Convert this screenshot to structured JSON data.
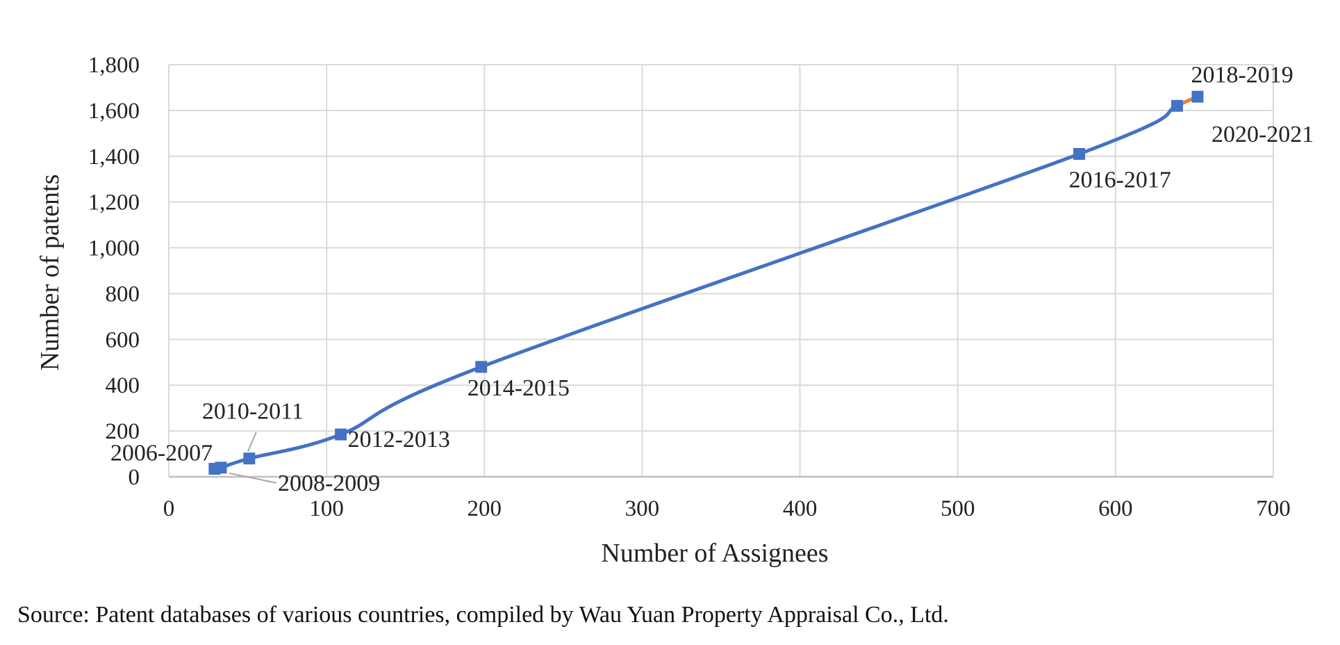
{
  "chart_data": {
    "type": "scatter",
    "xlabel": "Number of Assignees",
    "ylabel": "Number of patents",
    "xlim": [
      0,
      700
    ],
    "ylim": [
      0,
      1800
    ],
    "x_ticks": [
      0,
      100,
      200,
      300,
      400,
      500,
      600,
      700
    ],
    "y_ticks": [
      0,
      200,
      400,
      600,
      800,
      1000,
      1200,
      1400,
      1600,
      1800
    ],
    "x_tick_labels": [
      "0",
      "100",
      "200",
      "300",
      "400",
      "500",
      "600",
      "700"
    ],
    "y_tick_labels": [
      "0",
      "200",
      "400",
      "600",
      "800",
      "1,000",
      "1,200",
      "1,400",
      "1,600",
      "1,800"
    ],
    "grid": true,
    "legend": "none",
    "line_style": "smoothed",
    "series": [
      {
        "color": "#4472C4",
        "points": [
          {
            "x": 29,
            "y": 35,
            "label": "2006-2007"
          },
          {
            "x": 33,
            "y": 40,
            "label": "2008-2009"
          },
          {
            "x": 51,
            "y": 80,
            "label": "2010-2011"
          },
          {
            "x": 109,
            "y": 185,
            "label": "2012-2013"
          },
          {
            "x": 198,
            "y": 480,
            "label": "2014-2015"
          },
          {
            "x": 577,
            "y": 1410,
            "label": "2016-2017"
          },
          {
            "x": 639,
            "y": 1620,
            "label": "2018-2019"
          },
          {
            "x": 652,
            "y": 1660,
            "label": "2020-2021"
          }
        ]
      }
    ],
    "accent_segment_color": "#ED7D31"
  },
  "source_note": "Source: Patent databases of various countries, compiled by Wau Yuan Property Appraisal Co., Ltd."
}
